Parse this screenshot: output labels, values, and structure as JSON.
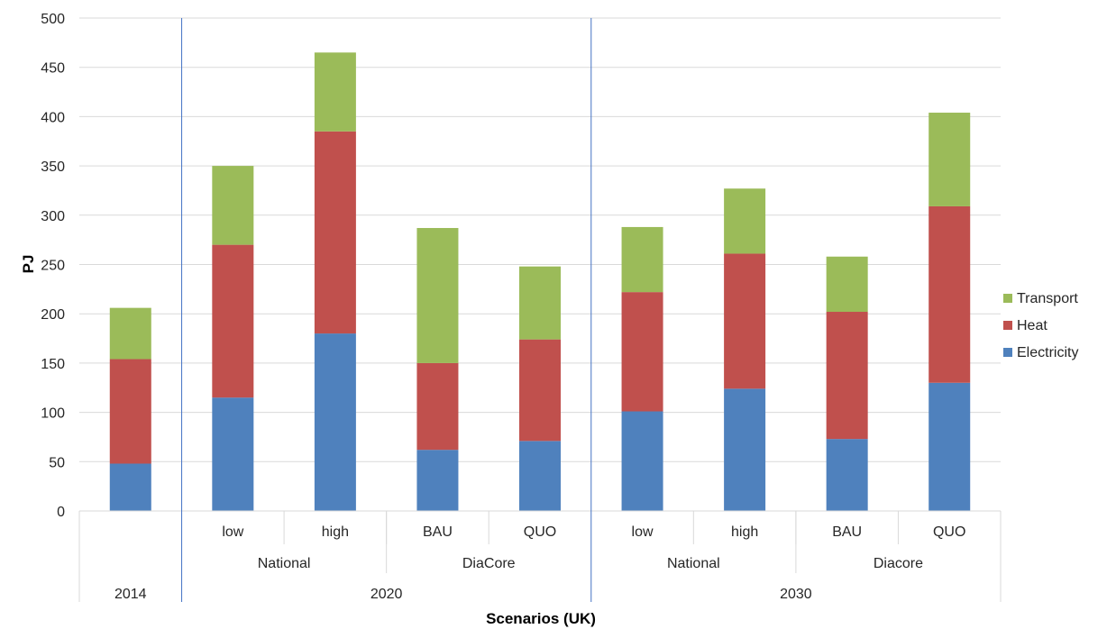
{
  "chart_data": {
    "type": "bar",
    "stacked": true,
    "xlabel": "Scenarios (UK)",
    "ylabel": "PJ",
    "ylim": [
      0,
      500
    ],
    "yticks": [
      0,
      50,
      100,
      150,
      200,
      250,
      300,
      350,
      400,
      450,
      500
    ],
    "grid": true,
    "legend_position": "right",
    "categories": [
      {
        "label": "",
        "group": "",
        "year": "2014"
      },
      {
        "label": "low",
        "group": "National",
        "year": "2020"
      },
      {
        "label": "high",
        "group": "National",
        "year": "2020"
      },
      {
        "label": "BAU",
        "group": "DiaCore",
        "year": "2020"
      },
      {
        "label": "QUO",
        "group": "DiaCore",
        "year": "2020"
      },
      {
        "label": "low",
        "group": "National",
        "year": "2030"
      },
      {
        "label": "high",
        "group": "National",
        "year": "2030"
      },
      {
        "label": "BAU",
        "group": "Diacore",
        "year": "2030"
      },
      {
        "label": "QUO",
        "group": "Diacore",
        "year": "2030"
      }
    ],
    "groups": [
      "National",
      "DiaCore",
      "National",
      "Diacore"
    ],
    "years": [
      "2014",
      "2020",
      "2030"
    ],
    "series": [
      {
        "name": "Electricity",
        "color": "#4F81BD",
        "values": [
          48,
          115,
          180,
          62,
          71,
          101,
          124,
          73,
          130
        ]
      },
      {
        "name": "Heat",
        "color": "#C0504D",
        "values": [
          106,
          155,
          205,
          88,
          103,
          121,
          137,
          129,
          179
        ]
      },
      {
        "name": "Transport",
        "color": "#9BBB59",
        "values": [
          52,
          80,
          80,
          137,
          74,
          66,
          66,
          56,
          95
        ]
      }
    ],
    "legend_order": [
      "Transport",
      "Heat",
      "Electricity"
    ]
  }
}
